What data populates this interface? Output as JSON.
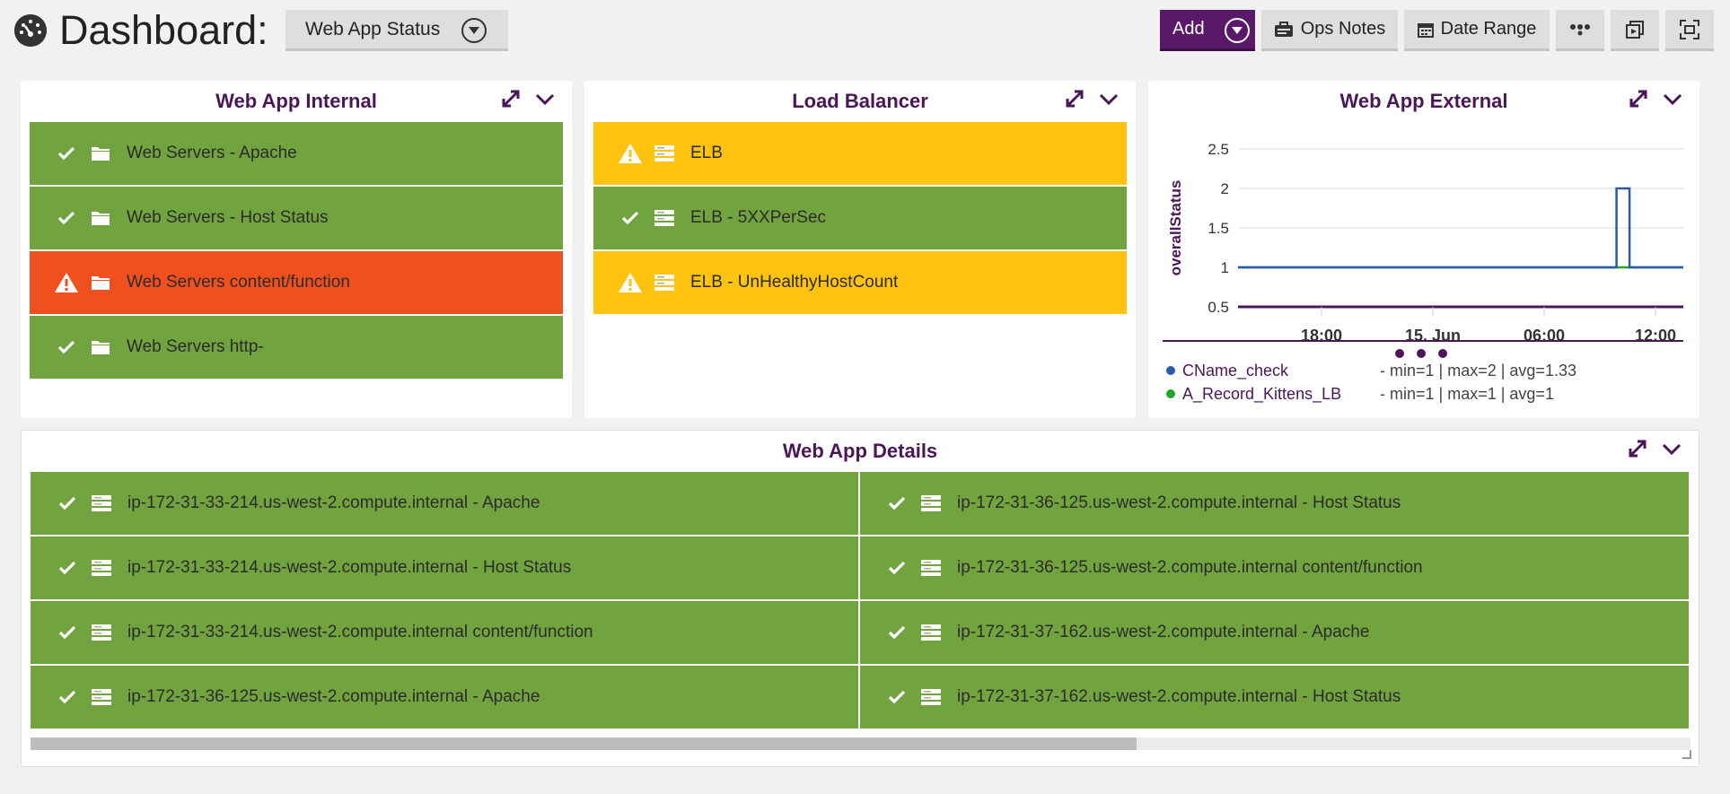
{
  "header": {
    "title": "Dashboard:",
    "dashboard_select": "Web App Status",
    "buttons": {
      "add": "Add",
      "ops_notes": "Ops Notes",
      "date_range": "Date Range"
    }
  },
  "colors": {
    "ok": "#71a33f",
    "warn": "#fec311",
    "crit": "#ef501e",
    "accent": "#5a1868"
  },
  "panels": {
    "internal": {
      "title": "Web App Internal",
      "items": [
        {
          "status": "ok",
          "icon": "folder-icon",
          "label": "Web Servers - Apache"
        },
        {
          "status": "ok",
          "icon": "folder-icon",
          "label": "Web Servers - Host Status"
        },
        {
          "status": "crit",
          "icon": "folder-icon",
          "label": "Web Servers content/function"
        },
        {
          "status": "ok",
          "icon": "folder-icon",
          "label": "Web Servers http-"
        }
      ]
    },
    "load_balancer": {
      "title": "Load Balancer",
      "items": [
        {
          "status": "warn",
          "icon": "server-icon",
          "label": "ELB"
        },
        {
          "status": "ok",
          "icon": "server-icon",
          "label": "ELB - 5XXPerSec"
        },
        {
          "status": "warn",
          "icon": "server-icon",
          "label": "ELB - UnHealthyHostCount"
        }
      ]
    },
    "external": {
      "title": "Web App External",
      "legend": [
        {
          "name": "CName_check",
          "color": "#2a5aa8",
          "stat": "-   min=1 | max=2  | avg=1.33"
        },
        {
          "name": "A_Record_Kittens_LB",
          "color": "#22a62a",
          "stat": "-   min=1 | max=1  | avg=1"
        }
      ]
    },
    "details": {
      "title": "Web App Details",
      "items": [
        {
          "status": "ok",
          "icon": "server-icon",
          "label": "ip-172-31-33-214.us-west-2.compute.internal - Apache"
        },
        {
          "status": "ok",
          "icon": "server-icon",
          "label": "ip-172-31-36-125.us-west-2.compute.internal - Host Status"
        },
        {
          "status": "ok",
          "icon": "server-icon",
          "label": "ip-172-31-33-214.us-west-2.compute.internal - Host Status"
        },
        {
          "status": "ok",
          "icon": "server-icon",
          "label": "ip-172-31-36-125.us-west-2.compute.internal content/function"
        },
        {
          "status": "ok",
          "icon": "server-icon",
          "label": "ip-172-31-33-214.us-west-2.compute.internal content/function"
        },
        {
          "status": "ok",
          "icon": "server-icon",
          "label": "ip-172-31-37-162.us-west-2.compute.internal - Apache"
        },
        {
          "status": "ok",
          "icon": "server-icon",
          "label": "ip-172-31-36-125.us-west-2.compute.internal - Apache"
        },
        {
          "status": "ok",
          "icon": "server-icon",
          "label": "ip-172-31-37-162.us-west-2.compute.internal - Host Status"
        }
      ]
    }
  },
  "chart_data": {
    "type": "line",
    "title": "",
    "xlabel": "",
    "ylabel": "overallStatus",
    "yticks": [
      0.5,
      1,
      1.5,
      2,
      2.5
    ],
    "ylim": [
      0.5,
      2.5
    ],
    "xticks": [
      "18:00",
      "15. Jun",
      "06:00",
      "12:00"
    ],
    "x_units": "hours since first tick",
    "xlim": [
      -4.5,
      19.5
    ],
    "xtick_values": [
      0,
      6,
      12,
      18
    ],
    "grid": true,
    "legend_position": "bottom",
    "series": [
      {
        "name": "CName_check",
        "color": "#2a5aa8",
        "x": [
          -4.5,
          15.9,
          15.9,
          16.6,
          16.6,
          19.5
        ],
        "y": [
          1,
          1,
          2,
          2,
          1,
          1
        ]
      },
      {
        "name": "A_Record_Kittens_LB",
        "color": "#22a62a",
        "x": [
          -4.5,
          19.5
        ],
        "y": [
          1,
          1
        ]
      }
    ]
  }
}
